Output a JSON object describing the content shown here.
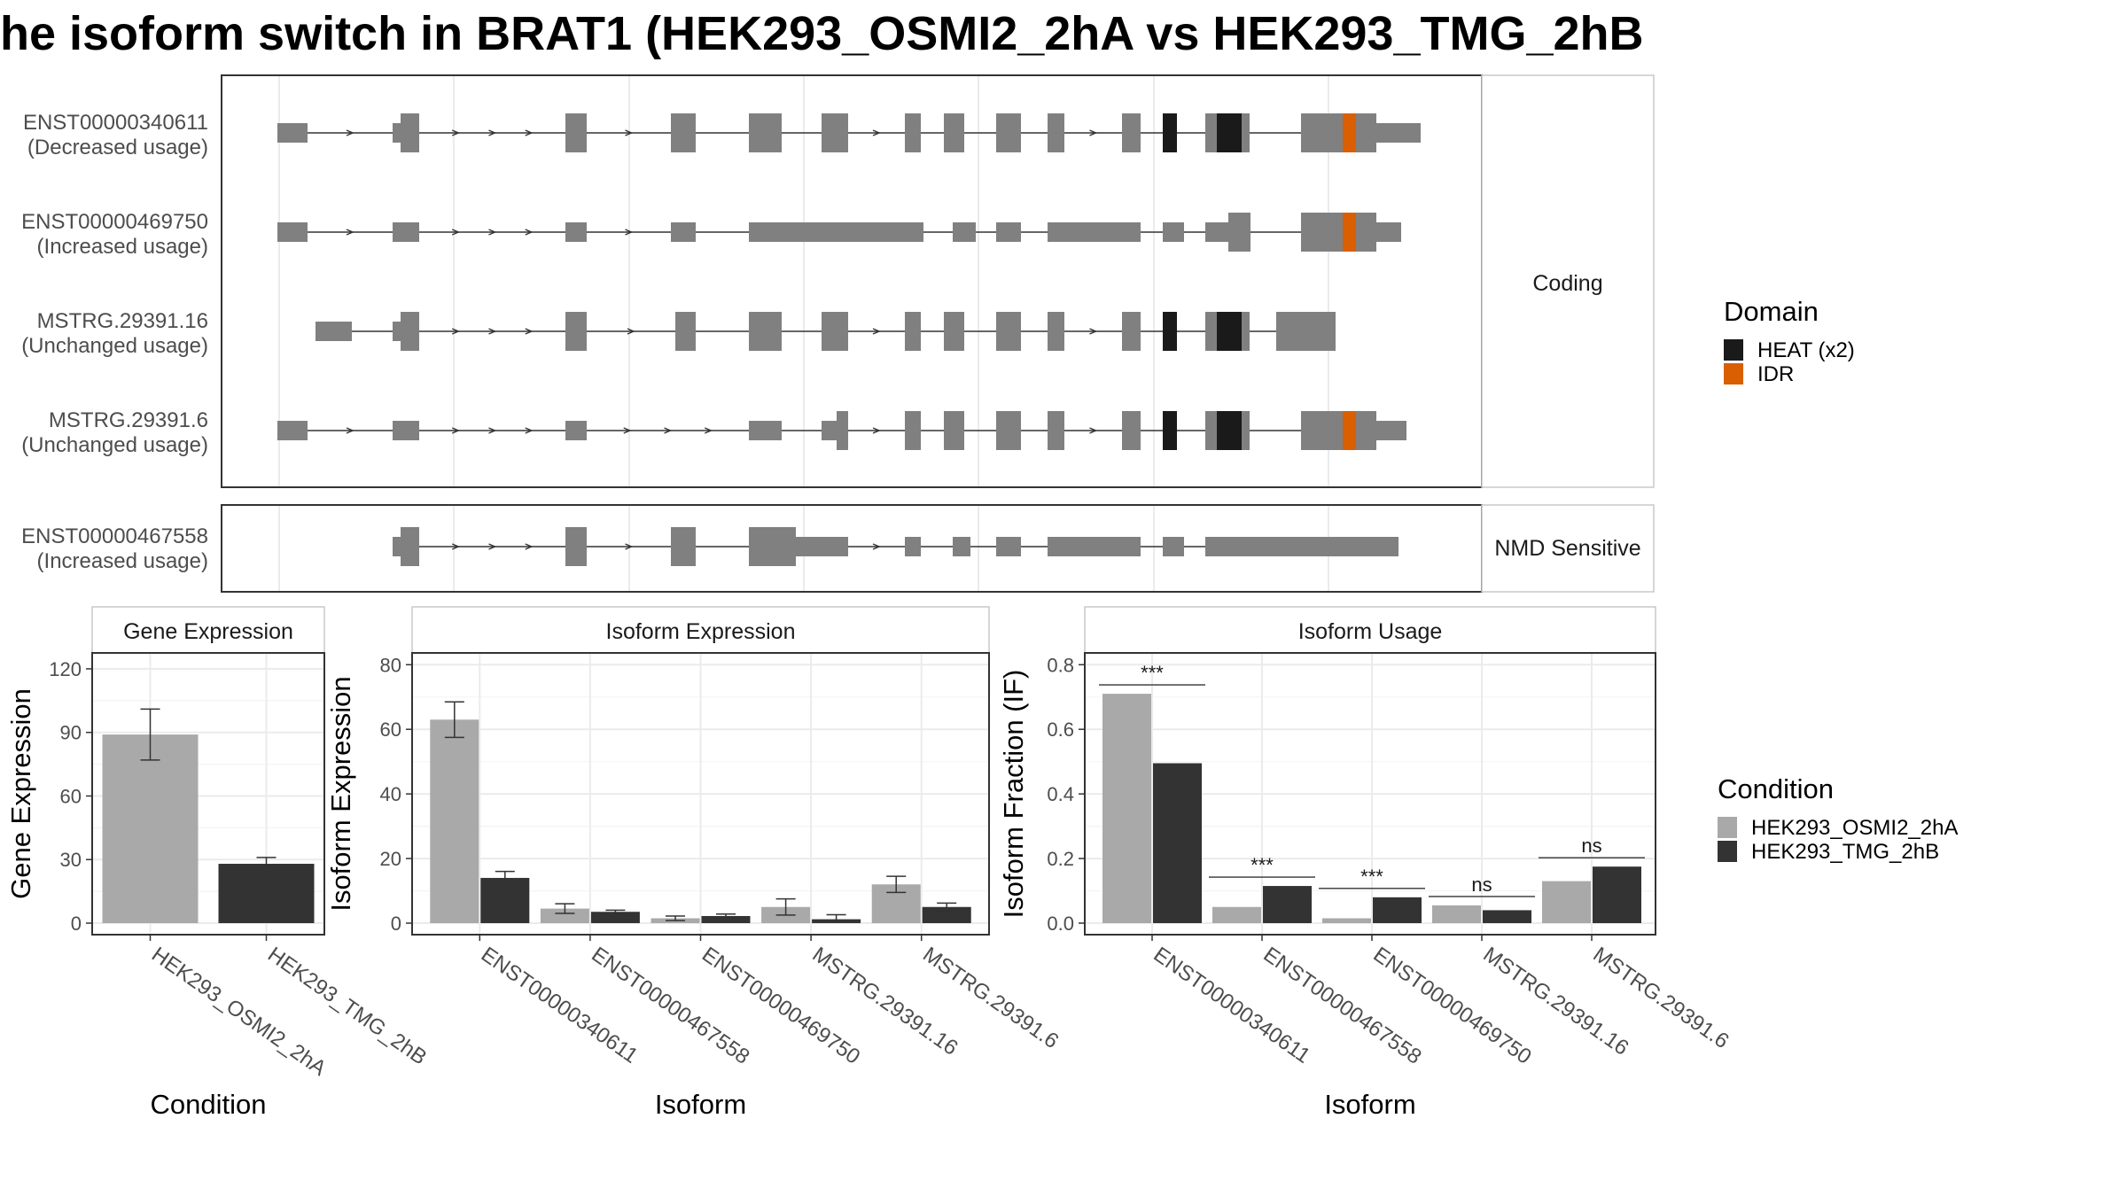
{
  "title": "he isoform switch in BRAT1 (HEK293_OSMI2_2hA vs HEK293_TMG_2hB",
  "colors": {
    "exon": "#808080",
    "heat": "#1a1a1a",
    "idr": "#d95f02",
    "cond1": "#a9a9a9",
    "cond2": "#333333"
  },
  "transcripts": {
    "coding_facet_label": "Coding",
    "nmd_facet_label": "NMD Sensitive",
    "rows": [
      {
        "id": "ENST00000340611",
        "usage": "(Decreased usage)",
        "group": "Coding"
      },
      {
        "id": "ENST00000469750",
        "usage": "(Increased usage)",
        "group": "Coding"
      },
      {
        "id": "MSTRG.29391.16",
        "usage": "(Unchanged usage)",
        "group": "Coding"
      },
      {
        "id": "MSTRG.29391.6",
        "usage": "(Unchanged usage)",
        "group": "Coding"
      },
      {
        "id": "ENST00000467558",
        "usage": "(Increased usage)",
        "group": "NMD Sensitive"
      }
    ]
  },
  "domain_legend": {
    "title": "Domain",
    "items": [
      {
        "label": "HEAT (x2)",
        "color": "#1a1a1a"
      },
      {
        "label": "IDR",
        "color": "#d95f02"
      }
    ]
  },
  "condition_legend": {
    "title": "Condition",
    "items": [
      {
        "label": "HEK293_OSMI2_2hA",
        "color": "#a9a9a9"
      },
      {
        "label": "HEK293_TMG_2hB",
        "color": "#333333"
      }
    ]
  },
  "chart_data": [
    {
      "type": "bar",
      "title": "Gene Expression",
      "xlabel": "Condition",
      "ylabel": "Gene Expression",
      "ylim": [
        0,
        125
      ],
      "yticks": [
        0,
        30,
        60,
        90,
        120
      ],
      "categories": [
        "HEK293_OSMI2_2hA",
        "HEK293_TMG_2hB"
      ],
      "values": [
        89,
        28
      ],
      "errors": [
        [
          77,
          101
        ],
        [
          26,
          31
        ]
      ]
    },
    {
      "type": "bar",
      "title": "Isoform Expression",
      "xlabel": "Isoform",
      "ylabel": "Isoform Expression",
      "ylim": [
        0,
        82
      ],
      "yticks": [
        0,
        20,
        40,
        60,
        80
      ],
      "categories": [
        "ENST00000340611",
        "ENST00000467558",
        "ENST00000469750",
        "MSTRG.29391.16",
        "MSTRG.29391.6"
      ],
      "series": [
        {
          "name": "HEK293_OSMI2_2hA",
          "values": [
            63,
            4.5,
            1.5,
            5,
            12
          ],
          "errors": [
            [
              57.5,
              68.5
            ],
            [
              3,
              6
            ],
            [
              0.8,
              2.2
            ],
            [
              2.5,
              7.5
            ],
            [
              9.5,
              14.5
            ]
          ]
        },
        {
          "name": "HEK293_TMG_2hB",
          "values": [
            14,
            3.5,
            2.2,
            1.2,
            5
          ],
          "errors": [
            [
              12,
              16
            ],
            [
              3,
              4
            ],
            [
              1.6,
              2.8
            ],
            [
              0.3,
              2.6
            ],
            [
              3.8,
              6.2
            ]
          ]
        }
      ]
    },
    {
      "type": "bar",
      "title": "Isoform Usage",
      "xlabel": "Isoform",
      "ylabel": "Isoform Fraction (IF)",
      "ylim": [
        0,
        0.82
      ],
      "yticks": [
        "0.0",
        "0.2",
        "0.4",
        "0.6",
        "0.8"
      ],
      "categories": [
        "ENST00000340611",
        "ENST00000467558",
        "ENST00000469750",
        "MSTRG.29391.16",
        "MSTRG.29391.6"
      ],
      "series": [
        {
          "name": "HEK293_OSMI2_2hA",
          "values": [
            0.71,
            0.05,
            0.015,
            0.055,
            0.13
          ]
        },
        {
          "name": "HEK293_TMG_2hB",
          "values": [
            0.495,
            0.115,
            0.08,
            0.04,
            0.175
          ]
        }
      ],
      "significance": [
        "***",
        "***",
        "***",
        "ns",
        "ns"
      ]
    }
  ]
}
